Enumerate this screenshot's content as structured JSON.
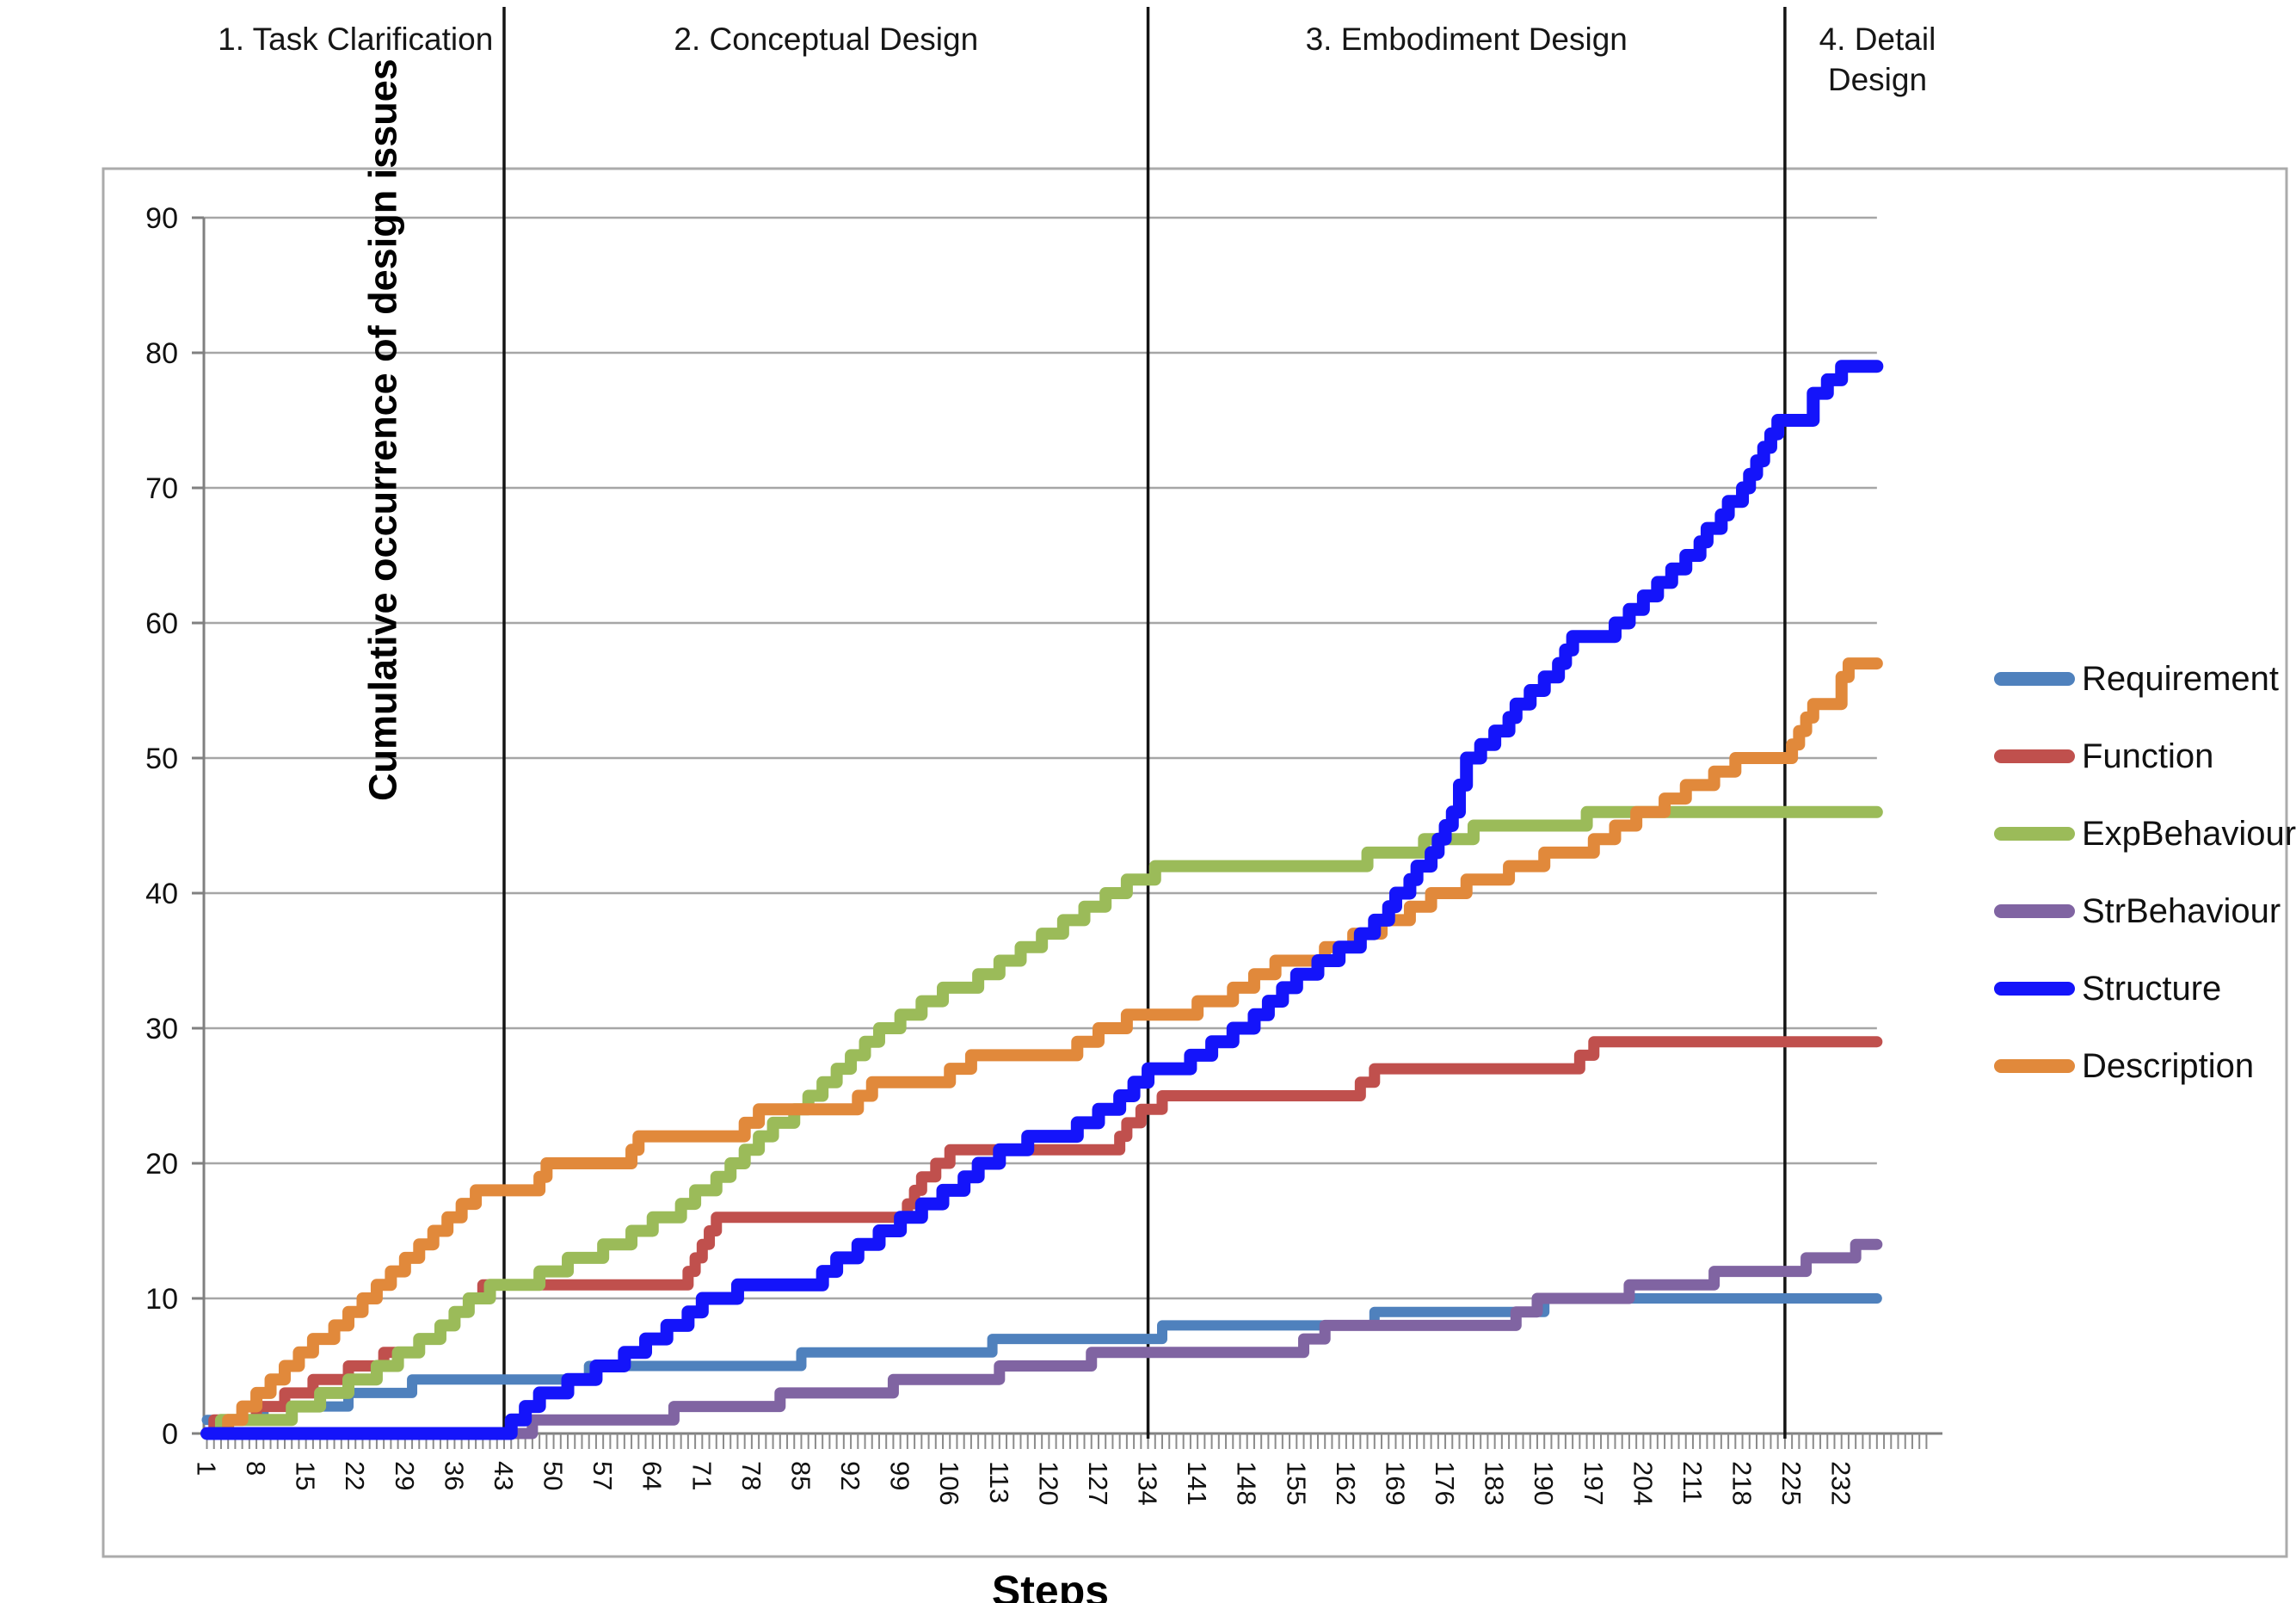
{
  "figure": {
    "phases": [
      {
        "label": "1. Task Clarification"
      },
      {
        "label": "2. Conceptual Design"
      },
      {
        "label": "3. Embodiment Design"
      },
      {
        "label": "4. Detail Design"
      }
    ]
  },
  "chart_data": {
    "type": "line",
    "line_style": "step-after",
    "title": "",
    "xlabel": "Steps",
    "ylabel": "Cumulative occurrence of design issues",
    "xlim": [
      1,
      237
    ],
    "ylim": [
      0,
      90
    ],
    "y_ticks": [
      0,
      10,
      20,
      30,
      40,
      50,
      60,
      70,
      80,
      90
    ],
    "x_ticks": [
      1,
      8,
      15,
      22,
      29,
      36,
      43,
      50,
      57,
      64,
      71,
      78,
      85,
      92,
      99,
      106,
      113,
      120,
      127,
      134,
      141,
      148,
      155,
      162,
      169,
      176,
      183,
      190,
      197,
      204,
      211,
      218,
      225,
      232
    ],
    "grid": true,
    "legend_position": "right",
    "phase_dividers_at_steps": [
      43,
      134,
      224
    ],
    "colors": {
      "gridline": "#a6a6a6",
      "axis": "#808080",
      "frame": "#ababab",
      "divider": "#141414",
      "tick": "#8c8c8c"
    },
    "series": [
      {
        "name": "Requirement",
        "color": "#4f81bd",
        "line_width": 12,
        "points": [
          [
            1,
            1
          ],
          [
            9,
            2
          ],
          [
            21,
            3
          ],
          [
            30,
            4
          ],
          [
            55,
            5
          ],
          [
            85,
            6
          ],
          [
            112,
            7
          ],
          [
            136,
            8
          ],
          [
            166,
            9
          ],
          [
            190,
            10
          ],
          [
            237,
            10
          ]
        ]
      },
      {
        "name": "Function",
        "color": "#c0504d",
        "line_width": 13,
        "points": [
          [
            1,
            0
          ],
          [
            2,
            1
          ],
          [
            8,
            2
          ],
          [
            12,
            3
          ],
          [
            16,
            4
          ],
          [
            21,
            5
          ],
          [
            26,
            6
          ],
          [
            31,
            7
          ],
          [
            34,
            8
          ],
          [
            36,
            9
          ],
          [
            38,
            10
          ],
          [
            40,
            11
          ],
          [
            69,
            12
          ],
          [
            70,
            13
          ],
          [
            71,
            14
          ],
          [
            72,
            15
          ],
          [
            73,
            16
          ],
          [
            100,
            17
          ],
          [
            101,
            18
          ],
          [
            102,
            19
          ],
          [
            104,
            20
          ],
          [
            106,
            21
          ],
          [
            130,
            22
          ],
          [
            131,
            23
          ],
          [
            133,
            24
          ],
          [
            136,
            25
          ],
          [
            164,
            26
          ],
          [
            166,
            27
          ],
          [
            195,
            28
          ],
          [
            197,
            29
          ],
          [
            237,
            29
          ]
        ]
      },
      {
        "name": "ExpBehaviour",
        "color": "#9bbb59",
        "line_width": 14,
        "points": [
          [
            1,
            0
          ],
          [
            3,
            1
          ],
          [
            13,
            2
          ],
          [
            17,
            3
          ],
          [
            21,
            4
          ],
          [
            25,
            5
          ],
          [
            28,
            6
          ],
          [
            31,
            7
          ],
          [
            34,
            8
          ],
          [
            36,
            9
          ],
          [
            38,
            10
          ],
          [
            41,
            11
          ],
          [
            48,
            12
          ],
          [
            52,
            13
          ],
          [
            57,
            14
          ],
          [
            61,
            15
          ],
          [
            64,
            16
          ],
          [
            68,
            17
          ],
          [
            70,
            18
          ],
          [
            73,
            19
          ],
          [
            75,
            20
          ],
          [
            77,
            21
          ],
          [
            79,
            22
          ],
          [
            81,
            23
          ],
          [
            84,
            24
          ],
          [
            86,
            25
          ],
          [
            88,
            26
          ],
          [
            90,
            27
          ],
          [
            92,
            28
          ],
          [
            94,
            29
          ],
          [
            96,
            30
          ],
          [
            99,
            31
          ],
          [
            102,
            32
          ],
          [
            105,
            33
          ],
          [
            110,
            34
          ],
          [
            113,
            35
          ],
          [
            116,
            36
          ],
          [
            119,
            37
          ],
          [
            122,
            38
          ],
          [
            125,
            39
          ],
          [
            128,
            40
          ],
          [
            131,
            41
          ],
          [
            135,
            42
          ],
          [
            165,
            43
          ],
          [
            173,
            44
          ],
          [
            180,
            45
          ],
          [
            196,
            46
          ],
          [
            237,
            46
          ]
        ]
      },
      {
        "name": "StrBehaviour",
        "color": "#8064a2",
        "line_width": 13,
        "points": [
          [
            1,
            0
          ],
          [
            47,
            1
          ],
          [
            67,
            2
          ],
          [
            82,
            3
          ],
          [
            98,
            4
          ],
          [
            113,
            5
          ],
          [
            126,
            6
          ],
          [
            156,
            7
          ],
          [
            159,
            8
          ],
          [
            186,
            9
          ],
          [
            189,
            10
          ],
          [
            202,
            11
          ],
          [
            214,
            12
          ],
          [
            227,
            13
          ],
          [
            234,
            14
          ],
          [
            237,
            14
          ]
        ]
      },
      {
        "name": "Structure",
        "color": "#1414fa",
        "line_width": 15,
        "points": [
          [
            1,
            0
          ],
          [
            44,
            1
          ],
          [
            46,
            2
          ],
          [
            48,
            3
          ],
          [
            52,
            4
          ],
          [
            56,
            5
          ],
          [
            60,
            6
          ],
          [
            63,
            7
          ],
          [
            66,
            8
          ],
          [
            69,
            9
          ],
          [
            71,
            10
          ],
          [
            76,
            11
          ],
          [
            88,
            12
          ],
          [
            90,
            13
          ],
          [
            93,
            14
          ],
          [
            96,
            15
          ],
          [
            99,
            16
          ],
          [
            102,
            17
          ],
          [
            105,
            18
          ],
          [
            108,
            19
          ],
          [
            110,
            20
          ],
          [
            113,
            21
          ],
          [
            117,
            22
          ],
          [
            124,
            23
          ],
          [
            127,
            24
          ],
          [
            130,
            25
          ],
          [
            132,
            26
          ],
          [
            134,
            27
          ],
          [
            140,
            28
          ],
          [
            143,
            29
          ],
          [
            146,
            30
          ],
          [
            149,
            31
          ],
          [
            151,
            32
          ],
          [
            153,
            33
          ],
          [
            155,
            34
          ],
          [
            158,
            35
          ],
          [
            161,
            36
          ],
          [
            164,
            37
          ],
          [
            166,
            38
          ],
          [
            168,
            39
          ],
          [
            169,
            40
          ],
          [
            171,
            41
          ],
          [
            172,
            42
          ],
          [
            174,
            43
          ],
          [
            175,
            44
          ],
          [
            176,
            45
          ],
          [
            177,
            46
          ],
          [
            178,
            48
          ],
          [
            179,
            50
          ],
          [
            181,
            51
          ],
          [
            183,
            52
          ],
          [
            185,
            53
          ],
          [
            186,
            54
          ],
          [
            188,
            55
          ],
          [
            190,
            56
          ],
          [
            192,
            57
          ],
          [
            193,
            58
          ],
          [
            194,
            59
          ],
          [
            200,
            60
          ],
          [
            202,
            61
          ],
          [
            204,
            62
          ],
          [
            206,
            63
          ],
          [
            208,
            64
          ],
          [
            210,
            65
          ],
          [
            212,
            66
          ],
          [
            213,
            67
          ],
          [
            215,
            68
          ],
          [
            216,
            69
          ],
          [
            218,
            70
          ],
          [
            219,
            71
          ],
          [
            220,
            72
          ],
          [
            221,
            73
          ],
          [
            222,
            74
          ],
          [
            223,
            75
          ],
          [
            228,
            77
          ],
          [
            230,
            78
          ],
          [
            232,
            79
          ],
          [
            237,
            79
          ]
        ]
      },
      {
        "name": "Description",
        "color": "#e1893b",
        "line_width": 14,
        "points": [
          [
            1,
            0
          ],
          [
            4,
            1
          ],
          [
            6,
            2
          ],
          [
            8,
            3
          ],
          [
            10,
            4
          ],
          [
            12,
            5
          ],
          [
            14,
            6
          ],
          [
            16,
            7
          ],
          [
            19,
            8
          ],
          [
            21,
            9
          ],
          [
            23,
            10
          ],
          [
            25,
            11
          ],
          [
            27,
            12
          ],
          [
            29,
            13
          ],
          [
            31,
            14
          ],
          [
            33,
            15
          ],
          [
            35,
            16
          ],
          [
            37,
            17
          ],
          [
            39,
            18
          ],
          [
            48,
            19
          ],
          [
            49,
            20
          ],
          [
            61,
            21
          ],
          [
            62,
            22
          ],
          [
            77,
            23
          ],
          [
            79,
            24
          ],
          [
            93,
            25
          ],
          [
            95,
            26
          ],
          [
            106,
            27
          ],
          [
            109,
            28
          ],
          [
            124,
            29
          ],
          [
            127,
            30
          ],
          [
            131,
            31
          ],
          [
            141,
            32
          ],
          [
            146,
            33
          ],
          [
            149,
            34
          ],
          [
            152,
            35
          ],
          [
            159,
            36
          ],
          [
            163,
            37
          ],
          [
            167,
            38
          ],
          [
            171,
            39
          ],
          [
            174,
            40
          ],
          [
            179,
            41
          ],
          [
            185,
            42
          ],
          [
            190,
            43
          ],
          [
            197,
            44
          ],
          [
            200,
            45
          ],
          [
            203,
            46
          ],
          [
            207,
            47
          ],
          [
            210,
            48
          ],
          [
            214,
            49
          ],
          [
            217,
            50
          ],
          [
            225,
            51
          ],
          [
            226,
            52
          ],
          [
            227,
            53
          ],
          [
            228,
            54
          ],
          [
            232,
            56
          ],
          [
            233,
            57
          ],
          [
            237,
            57
          ]
        ]
      }
    ]
  }
}
